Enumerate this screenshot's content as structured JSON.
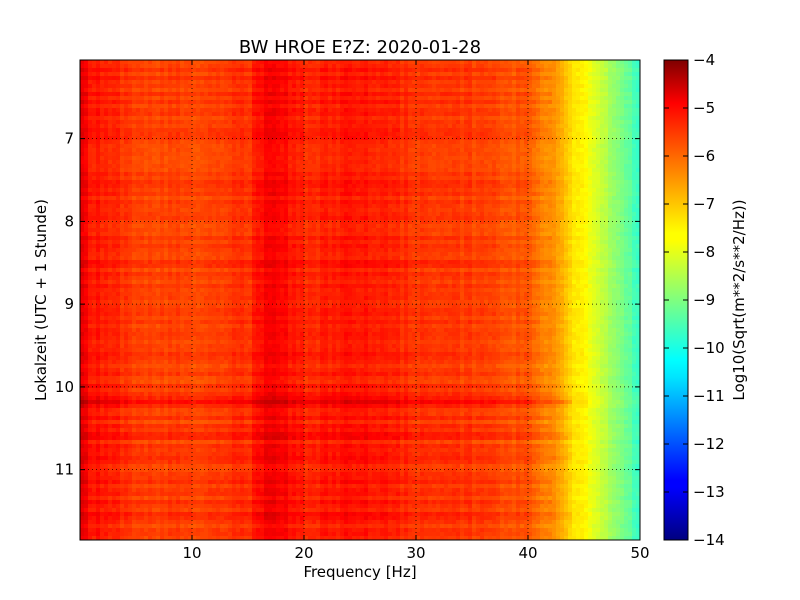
{
  "chart_data": {
    "type": "heatmap",
    "title": "BW HROE E?Z: 2020-01-28",
    "xlabel": "Frequency [Hz]",
    "ylabel": "Lokalzeit (UTC + 1 Stunde)",
    "xlim": [
      0,
      50
    ],
    "ylim": [
      11.85,
      6.05
    ],
    "x_ticks": [
      10,
      20,
      30,
      40,
      50
    ],
    "y_ticks": [
      7,
      8,
      9,
      10,
      11
    ],
    "grid": true,
    "colormap": "jet",
    "colorbar": {
      "label": "Log10(Sqrt(m**2/s**2/Hz))",
      "range": [
        -14,
        -4
      ],
      "ticks": [
        -4,
        -5,
        -6,
        -7,
        -8,
        -9,
        -10,
        -11,
        -12,
        -13,
        -14
      ]
    },
    "spectrum_profile": {
      "frequency_hz": [
        0,
        1,
        5,
        10,
        15,
        17,
        20,
        25,
        30,
        35,
        40,
        42,
        44,
        45,
        46,
        48,
        50
      ],
      "log10_amplitude": [
        -5.0,
        -5.4,
        -5.8,
        -5.9,
        -5.7,
        -5.1,
        -5.6,
        -5.4,
        -5.7,
        -5.8,
        -6.1,
        -6.6,
        -7.4,
        -7.7,
        -8.1,
        -8.9,
        -9.7
      ]
    },
    "strong_bands": [
      {
        "time": 10.18,
        "log10_amplitude_offset": 0.6
      },
      {
        "time": 10.6,
        "log10_amplitude_offset": 0.35
      },
      {
        "time": 10.85,
        "log10_amplitude_offset": 0.3
      },
      {
        "time": 11.55,
        "log10_amplitude_offset": 0.3
      }
    ]
  }
}
